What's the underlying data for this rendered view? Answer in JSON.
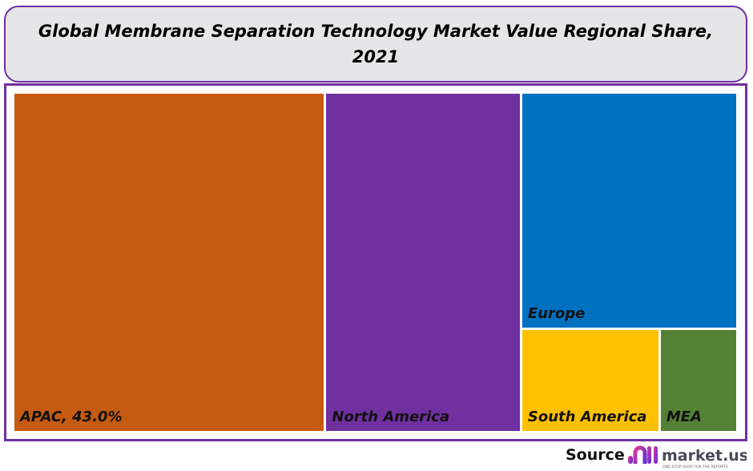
{
  "chart_data": {
    "type": "treemap",
    "title": "Global Membrane Separation Technology Market Value Regional Share, 2021",
    "unit": "%",
    "items": [
      {
        "name": "APAC",
        "label": "APAC, 43.0%",
        "value": 43.0,
        "color": "#c55a11"
      },
      {
        "name": "North America",
        "label": "North America",
        "value": 27.0,
        "color": "#7030a0"
      },
      {
        "name": "Europe",
        "label": "Europe",
        "value": 20.7,
        "color": "#0070c0"
      },
      {
        "name": "South America",
        "label": "South America",
        "value": 5.7,
        "color": "#ffc000"
      },
      {
        "name": "MEA",
        "label": "MEA",
        "value": 3.1,
        "color": "#548235"
      }
    ]
  },
  "footer": {
    "source_label": "Source",
    "logo_text": "market.us",
    "logo_tagline": "ONE STOP SHOP FOR THE REPORTS"
  }
}
